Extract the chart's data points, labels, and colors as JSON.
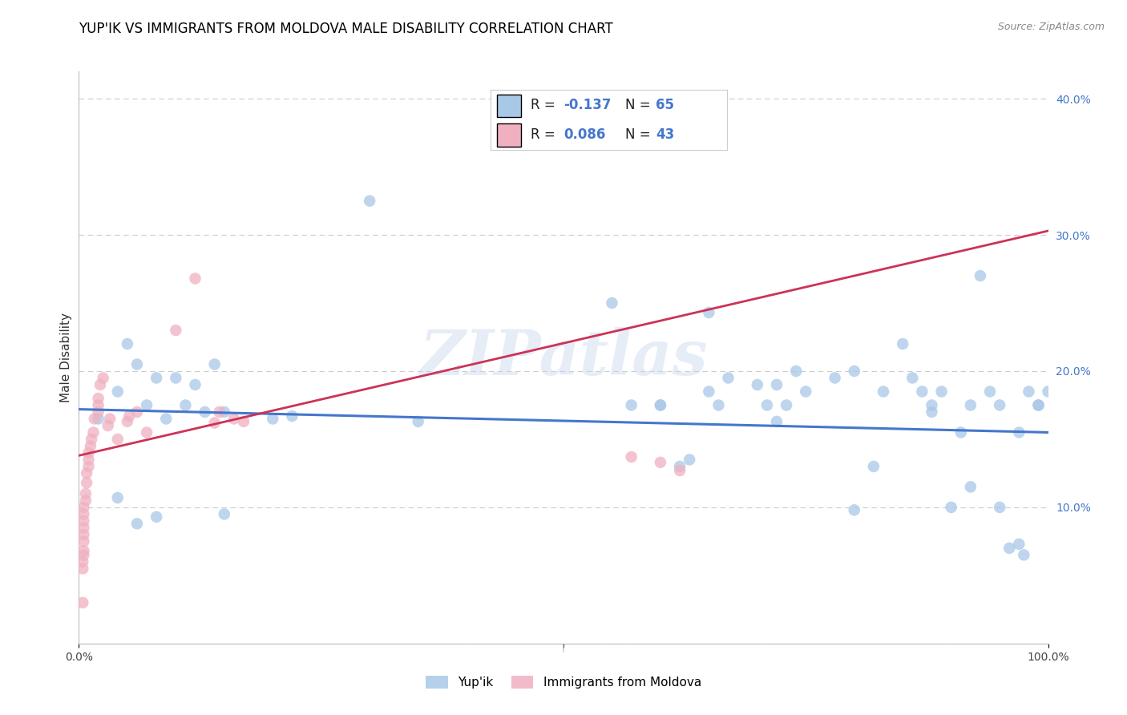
{
  "title": "YUP'IK VS IMMIGRANTS FROM MOLDOVA MALE DISABILITY CORRELATION CHART",
  "source": "Source: ZipAtlas.com",
  "ylabel": "Male Disability",
  "watermark": "ZIPatlas",
  "legend_blue_r": "-0.137",
  "legend_blue_n": "65",
  "legend_pink_r": "0.086",
  "legend_pink_n": "43",
  "xlim": [
    0,
    1.0
  ],
  "ylim": [
    0,
    0.42
  ],
  "ytick_positions": [
    0.0,
    0.1,
    0.2,
    0.3,
    0.4
  ],
  "ytick_labels": [
    "",
    "10.0%",
    "20.0%",
    "30.0%",
    "40.0%"
  ],
  "blue_scatter_x": [
    0.02,
    0.04,
    0.05,
    0.06,
    0.07,
    0.08,
    0.09,
    0.1,
    0.11,
    0.12,
    0.13,
    0.14,
    0.15,
    0.2,
    0.22,
    0.3,
    0.55,
    0.57,
    0.6,
    0.62,
    0.63,
    0.65,
    0.66,
    0.67,
    0.7,
    0.71,
    0.72,
    0.73,
    0.74,
    0.75,
    0.78,
    0.8,
    0.82,
    0.83,
    0.85,
    0.86,
    0.87,
    0.88,
    0.89,
    0.9,
    0.91,
    0.92,
    0.93,
    0.94,
    0.95,
    0.96,
    0.97,
    0.975,
    0.98,
    0.99,
    1.0,
    0.08,
    0.15,
    0.04,
    0.06,
    0.35,
    0.6,
    0.65,
    0.72,
    0.8,
    0.88,
    0.92,
    0.95,
    0.97,
    0.99
  ],
  "blue_scatter_y": [
    0.165,
    0.185,
    0.22,
    0.205,
    0.175,
    0.195,
    0.165,
    0.195,
    0.175,
    0.19,
    0.17,
    0.205,
    0.17,
    0.165,
    0.167,
    0.325,
    0.25,
    0.175,
    0.175,
    0.13,
    0.135,
    0.185,
    0.175,
    0.195,
    0.19,
    0.175,
    0.19,
    0.175,
    0.2,
    0.185,
    0.195,
    0.2,
    0.13,
    0.185,
    0.22,
    0.195,
    0.185,
    0.17,
    0.185,
    0.1,
    0.155,
    0.115,
    0.27,
    0.185,
    0.175,
    0.07,
    0.155,
    0.065,
    0.185,
    0.175,
    0.185,
    0.093,
    0.095,
    0.107,
    0.088,
    0.163,
    0.175,
    0.243,
    0.163,
    0.098,
    0.175,
    0.175,
    0.1,
    0.073,
    0.175
  ],
  "pink_scatter_x": [
    0.004,
    0.004,
    0.004,
    0.005,
    0.005,
    0.005,
    0.005,
    0.005,
    0.005,
    0.005,
    0.005,
    0.007,
    0.007,
    0.008,
    0.008,
    0.01,
    0.01,
    0.01,
    0.012,
    0.013,
    0.015,
    0.016,
    0.02,
    0.02,
    0.02,
    0.022,
    0.025,
    0.03,
    0.032,
    0.04,
    0.05,
    0.052,
    0.06,
    0.07,
    0.1,
    0.12,
    0.14,
    0.145,
    0.16,
    0.17,
    0.57,
    0.6,
    0.62
  ],
  "pink_scatter_y": [
    0.03,
    0.055,
    0.06,
    0.065,
    0.068,
    0.075,
    0.08,
    0.085,
    0.09,
    0.095,
    0.1,
    0.105,
    0.11,
    0.118,
    0.125,
    0.13,
    0.135,
    0.14,
    0.145,
    0.15,
    0.155,
    0.165,
    0.17,
    0.175,
    0.18,
    0.19,
    0.195,
    0.16,
    0.165,
    0.15,
    0.163,
    0.167,
    0.17,
    0.155,
    0.23,
    0.268,
    0.162,
    0.17,
    0.165,
    0.163,
    0.137,
    0.133,
    0.127
  ],
  "blue_line_y_start": 0.172,
  "blue_line_y_end": 0.155,
  "pink_line_y_start": 0.138,
  "pink_line_y_end": 0.303,
  "grid_color": "#cccccc",
  "blue_color": "#a8c8e8",
  "pink_color": "#f0b0c0",
  "blue_line_color": "#4477cc",
  "pink_line_color": "#cc3355",
  "title_fontsize": 12,
  "axis_label_fontsize": 11,
  "tick_fontsize": 10,
  "scatter_size": 110
}
